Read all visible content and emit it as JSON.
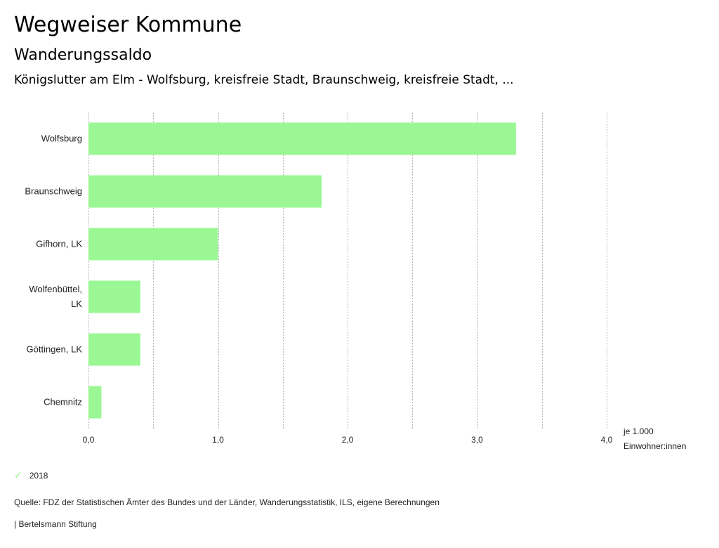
{
  "header": {
    "title": "Wegweiser Kommune",
    "subtitle": "Wanderungssaldo",
    "description": "Königslutter am Elm - Wolfsburg, kreisfreie Stadt, Braunschweig, kreisfreie Stadt, ..."
  },
  "chart_data": {
    "type": "bar",
    "orientation": "horizontal",
    "categories": [
      [
        "Wolfsburg"
      ],
      [
        "Braunschweig"
      ],
      [
        "Gifhorn, LK"
      ],
      [
        "Wolfenbüttel,",
        "LK"
      ],
      [
        "Göttingen, LK"
      ],
      [
        "Chemnitz"
      ]
    ],
    "series": [
      {
        "name": "2018",
        "values": [
          3.3,
          1.8,
          1.0,
          0.4,
          0.4,
          0.1
        ],
        "color": "#9af794"
      }
    ],
    "xlim": [
      0,
      4.0
    ],
    "xticks": [
      "0,0",
      "1,0",
      "2,0",
      "3,0",
      "4,0"
    ],
    "xtick_values": [
      0,
      1,
      2,
      3,
      4
    ],
    "xlabel": [
      "je 1.000",
      "Einwohner:innen"
    ],
    "grid": true,
    "legend": "bottom-left"
  },
  "legend": {
    "label": "2018",
    "icon": "check-icon",
    "color": "#9af794"
  },
  "footer": {
    "source": "Quelle: FDZ der Statistischen Ämter des Bundes und der Länder, Wanderungsstatistik, ILS, eigene Berechnungen",
    "brand": "| Bertelsmann Stiftung"
  }
}
